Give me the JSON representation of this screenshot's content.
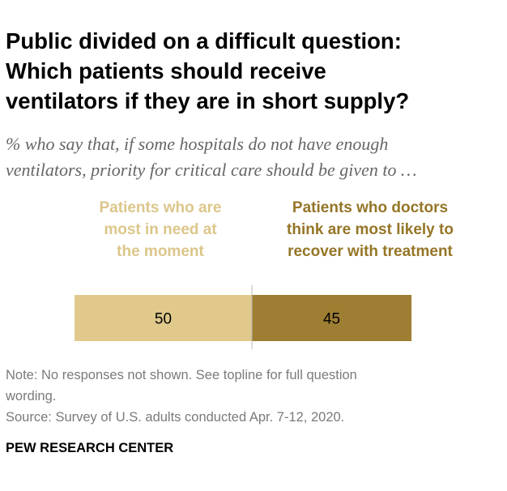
{
  "colors": {
    "need": "#e0c98b",
    "recover": "#9e7e32",
    "need_label": "#dcc68a",
    "recover_label": "#957628",
    "divider": "#b8b8b8",
    "value_text": "#000000"
  },
  "chart_data": {
    "type": "bar",
    "orientation": "horizontal-stacked",
    "title": "Public divided on a difficult question:\nWhich patients should receive\nventilators if they are in short supply?",
    "subtitle": "% who say that, if some hospitals do not have enough\nventilators, priority for critical care should be given to …",
    "categories": [
      ""
    ],
    "series": [
      {
        "name": "Patients who are\nmost in need at\nthe moment",
        "values": [
          50
        ]
      },
      {
        "name": "Patients who doctors\nthink are most likely to\nrecover with treatment",
        "values": [
          45
        ]
      }
    ],
    "xlim": [
      0,
      100
    ],
    "grid": false,
    "legend": "top"
  },
  "footer": {
    "note": "Note: No responses not shown. See topline for full question\nwording.\nSource: Survey of U.S. adults conducted Apr. 7-12, 2020.",
    "brand": "PEW RESEARCH CENTER"
  }
}
